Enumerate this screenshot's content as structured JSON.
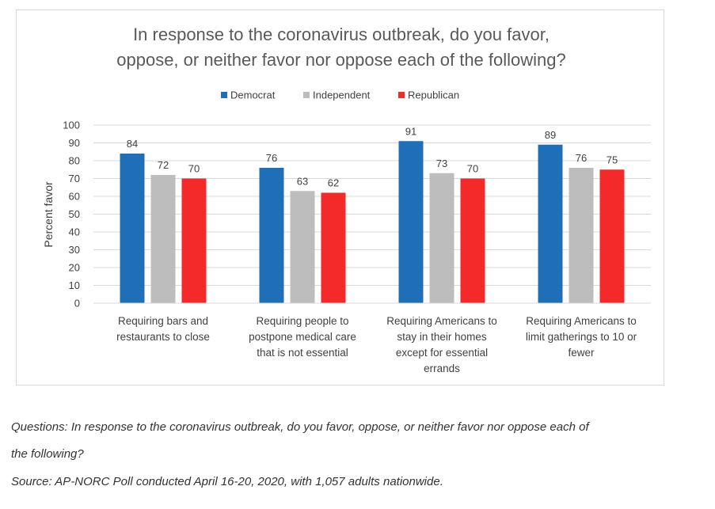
{
  "chart_data": {
    "type": "bar",
    "title_lines": [
      "In response to the coronavirus outbreak, do you favor,",
      "oppose, or neither favor nor oppose each of the following?"
    ],
    "ylabel": "Percent favor",
    "ylim": [
      0,
      100
    ],
    "yticks": [
      0,
      10,
      20,
      30,
      40,
      50,
      60,
      70,
      80,
      90,
      100
    ],
    "grid": true,
    "legend_position": "top",
    "categories": [
      [
        "Requiring bars and",
        "restaurants to close"
      ],
      [
        "Requiring people to",
        "postpone medical care",
        "that is not essential"
      ],
      [
        "Requiring Americans to",
        "stay in their homes",
        "except for essential",
        "errands"
      ],
      [
        "Requiring Americans to",
        "limit gatherings to 10 or",
        "fewer"
      ]
    ],
    "series": [
      {
        "name": "Democrat",
        "color": "#1f6fb8",
        "values": [
          84,
          76,
          91,
          89
        ]
      },
      {
        "name": "Independent",
        "color": "#bdbdbd",
        "values": [
          72,
          63,
          73,
          76
        ]
      },
      {
        "name": "Republican",
        "color": "#f42a2a",
        "values": [
          70,
          62,
          70,
          75
        ]
      }
    ]
  },
  "captions": {
    "questions_line1": "Questions: In response to the coronavirus outbreak, do you favor, oppose, or neither favor nor oppose each of",
    "questions_line2": "the following?",
    "source": "Source: AP-NORC Poll conducted April 16-20, 2020, with 1,057 adults nationwide."
  }
}
